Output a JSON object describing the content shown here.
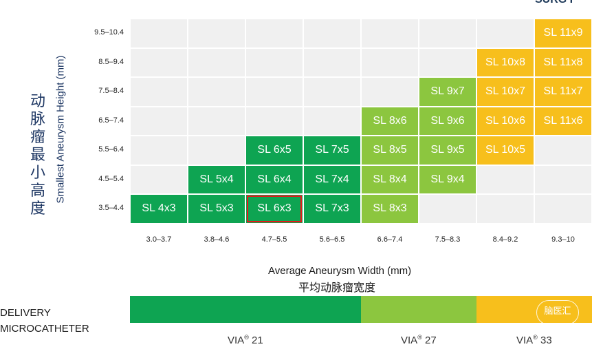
{
  "corner_text": "SURG I",
  "chart_data": {
    "type": "heatmap",
    "title": "",
    "xlabel": "Average Aneurysm Width (mm)",
    "xlabel_cn": "平均动脉瘤宽度",
    "ylabel": "Smallest Aneurysm Height (mm)",
    "ylabel_cn": "动脉瘤最小高度",
    "x_categories": [
      "3.0–3.7",
      "3.8–4.6",
      "4.7–5.5",
      "5.6–6.5",
      "6.6–7.4",
      "7.5–8.3",
      "8.4–9.2",
      "9.3–10"
    ],
    "y_categories": [
      "9.5–10.4",
      "8.5–9.4",
      "7.5–8.4",
      "6.5–7.4",
      "5.5–6.4",
      "4.5–5.4",
      "3.5–4.4"
    ],
    "cells": [
      [
        "",
        "",
        "",
        "",
        "",
        "",
        "",
        "SL 11x9"
      ],
      [
        "",
        "",
        "",
        "",
        "",
        "",
        "SL 10x8",
        "SL 11x8"
      ],
      [
        "",
        "",
        "",
        "",
        "",
        "SL 9x7",
        "SL 10x7",
        "SL 11x7"
      ],
      [
        "",
        "",
        "",
        "",
        "SL 8x6",
        "SL 9x6",
        "SL 10x6",
        "SL 11x6"
      ],
      [
        "",
        "",
        "SL 6x5",
        "SL 7x5",
        "SL 8x5",
        "SL 9x5",
        "SL 10x5",
        ""
      ],
      [
        "",
        "SL 5x4",
        "SL 6x4",
        "SL 7x4",
        "SL 8x4",
        "SL 9x4",
        "",
        ""
      ],
      [
        "SL 4x3",
        "SL 5x3",
        "SL 6x3",
        "SL 7x3",
        "SL 8x3",
        "",
        "",
        ""
      ]
    ],
    "column_colors": [
      "#0ea452",
      "#0ea452",
      "#0ea452",
      "#0ea452",
      "#8cc63f",
      "#8cc63f",
      "#f7bf1c",
      "#f7bf1c"
    ],
    "empty_color": "#f0f0f0",
    "highlighted_cell": "SL 6x3",
    "highlight_color": "#e11b1b"
  },
  "delivery": {
    "label_line1": "DELIVERY",
    "label_line2": "MICROCATHETER",
    "segments": [
      {
        "name": "VIA® 21",
        "text": "VIA",
        "sup": "®",
        "size": "21",
        "color": "#0ea452",
        "columns": [
          0,
          3
        ]
      },
      {
        "name": "VIA® 27",
        "text": "VIA",
        "sup": "®",
        "size": "27",
        "color": "#8cc63f",
        "columns": [
          4,
          5
        ]
      },
      {
        "name": "VIA® 33",
        "text": "VIA",
        "sup": "®",
        "size": "33",
        "color": "#f7bf1c",
        "columns": [
          6,
          7
        ]
      }
    ]
  },
  "watermark": "脑医汇"
}
